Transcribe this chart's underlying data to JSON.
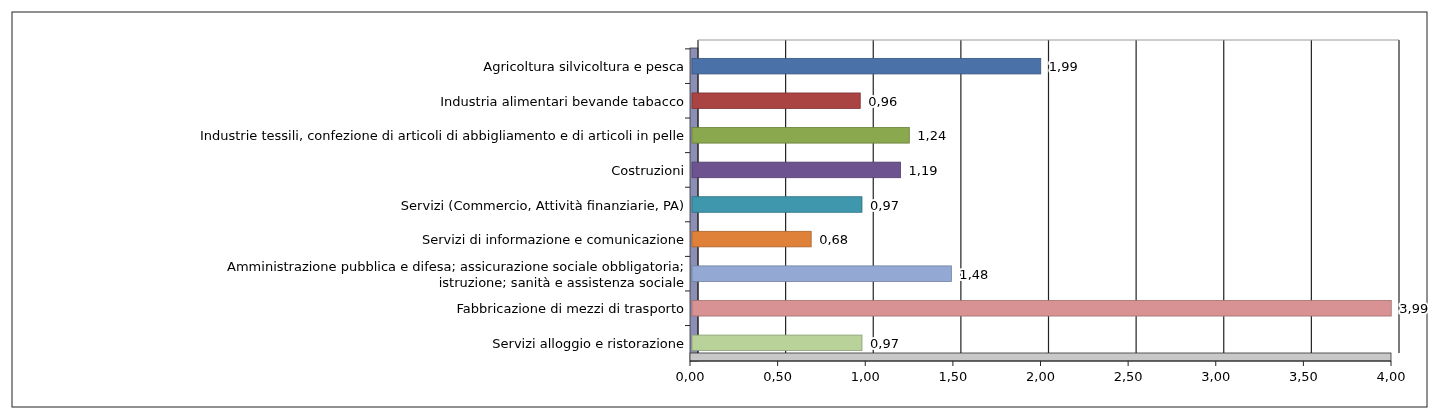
{
  "chart_data": {
    "type": "bar",
    "orientation": "horizontal",
    "categories": [
      "Agricoltura silvicoltura e pesca",
      "Industria alimentari bevande tabacco",
      "Industrie tessili, confezione di articoli di abbigliamento e di articoli in pelle",
      "Costruzioni",
      "Servizi (Commercio, Attività finanziarie, PA)",
      "Servizi di informazione e comunicazione",
      "Amministrazione pubblica e difesa; assicurazione sociale obbligatoria; istruzione; sanità e assistenza sociale",
      "Fabbricazione di mezzi di trasporto",
      "Servizi alloggio e ristorazione"
    ],
    "values": [
      1.99,
      0.96,
      1.24,
      1.19,
      0.97,
      0.68,
      1.48,
      3.99,
      0.97
    ],
    "colors": [
      "#4a72a8",
      "#a94442",
      "#8aa84e",
      "#6d5390",
      "#3e97ad",
      "#e0813a",
      "#93a9d4",
      "#d89294",
      "#b8d29a"
    ],
    "value_labels": [
      "1,99",
      "0,96",
      "1,24",
      "1,19",
      "0,97",
      "0,68",
      "1,48",
      "3,99",
      "0,97"
    ],
    "xlim": [
      0,
      4
    ],
    "xticks": [
      {
        "value": 0,
        "label": "0,00"
      },
      {
        "value": 0.5,
        "label": "0,50"
      },
      {
        "value": 1,
        "label": "1,00"
      },
      {
        "value": 1.5,
        "label": "1,50"
      },
      {
        "value": 2,
        "label": "2,00"
      },
      {
        "value": 2.5,
        "label": "2,50"
      },
      {
        "value": 3,
        "label": "3,00"
      },
      {
        "value": 3.5,
        "label": "3,50"
      },
      {
        "value": 4,
        "label": "4,00"
      }
    ],
    "grid": "x"
  }
}
